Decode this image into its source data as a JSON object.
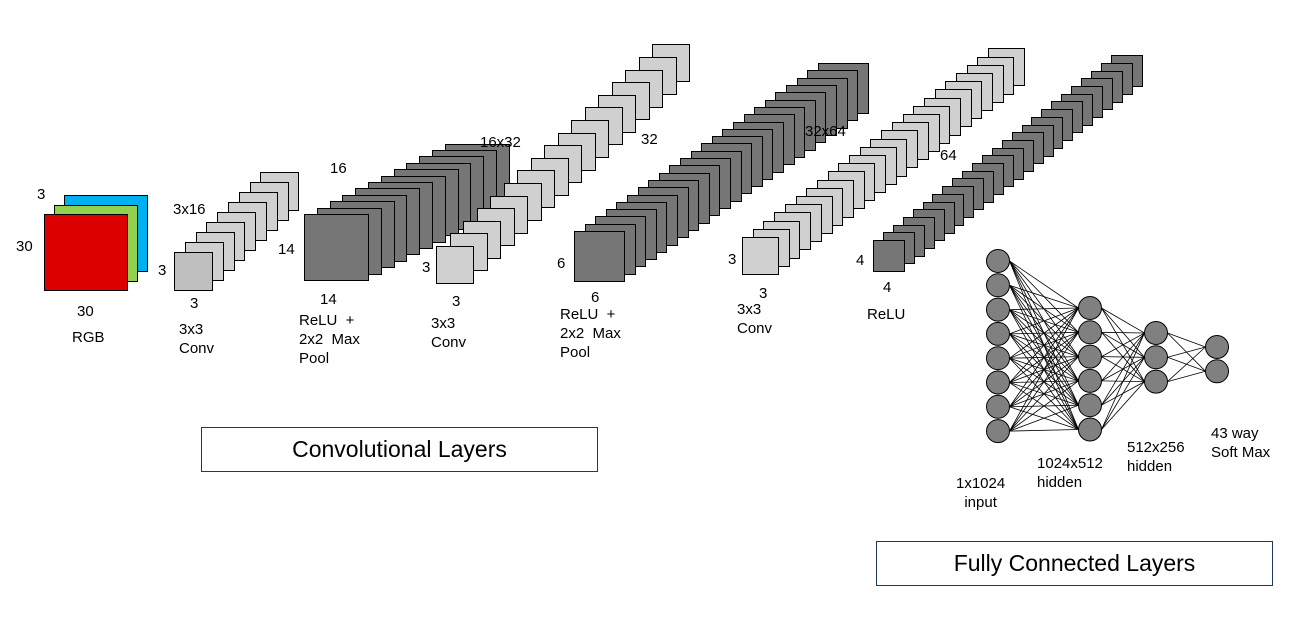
{
  "colors": {
    "red": "#dd0000",
    "green": "#92d050",
    "blue": "#00b0f0",
    "light_gray": "#d0d0d0",
    "mid_gray": "#bfbfbf",
    "dark_gray": "#767676",
    "node_gray": "#808080"
  },
  "input": {
    "depth": "3",
    "height": "30",
    "width": "30",
    "name": "RGB"
  },
  "conv1": {
    "channels": "3x16",
    "height": "3",
    "width": "3",
    "desc": "3x3\nConv"
  },
  "pool1": {
    "depth": "16",
    "height": "14",
    "width": "14",
    "desc": "ReLU  +\n2x2  Max\nPool"
  },
  "conv2": {
    "channels": "16x32",
    "height": "3",
    "width": "3",
    "desc": "3x3\nConv"
  },
  "pool2": {
    "depth": "32",
    "height": "6",
    "width": "6",
    "desc": "ReLU  +\n2x2  Max\nPool"
  },
  "conv3": {
    "channels": "32x64",
    "height": "3",
    "width": "3",
    "desc": "3x3\nConv"
  },
  "relu3": {
    "depth": "64",
    "height": "4",
    "width": "4",
    "desc": "ReLU"
  },
  "fc": {
    "input_label": "1x1024\n  input",
    "hidden1_label": "1024x512\nhidden",
    "hidden2_label": "512x256\nhidden",
    "output_label": "43 way\nSoft Max",
    "layer_nodes": [
      8,
      6,
      3,
      2
    ]
  },
  "sections": {
    "conv_title": "Convolutional Layers",
    "fc_title": "Fully Connected Layers"
  }
}
